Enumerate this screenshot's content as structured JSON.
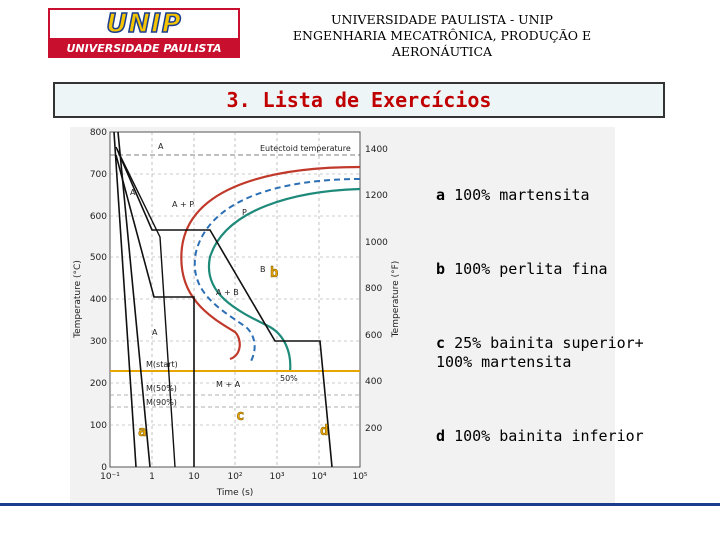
{
  "logo": {
    "top_text": "UNIP",
    "bottom_text": "UNIVERSIDADE PAULISTA"
  },
  "header": {
    "line1": "UNIVERSIDADE PAULISTA - UNIP",
    "line2": "ENGENHARIA MECATRÔNICA, PRODUÇÃO E",
    "line3": "AERONÁUTICA"
  },
  "title": "3. Lista de Exercícios",
  "diagram": {
    "y_left_label": "Temperature (°C)",
    "y_right_label": "Temperature (°F)",
    "x_label": "Time (s)",
    "y_left_ticks": [
      "800",
      "700",
      "600",
      "500",
      "400",
      "300",
      "200",
      "100",
      "0"
    ],
    "y_right_ticks": [
      "1400",
      "1200",
      "1000",
      "800",
      "600",
      "400",
      "200"
    ],
    "x_ticks": [
      "10⁻¹",
      "1",
      "10",
      "10²",
      "10³",
      "10⁴",
      "10⁵"
    ],
    "annotations": {
      "eutectoid": "Eutectoid temperature",
      "A_top": "A",
      "A_left": "A",
      "A_mid": "A",
      "A_plus_P": "A + P",
      "P": "P",
      "B": "B",
      "A_plus_B": "A + B",
      "M_start": "M(start)",
      "M50": "M(50%)",
      "M90": "M(90%)",
      "M_plus_A": "M + A",
      "pct50": "50%"
    },
    "path_labels": {
      "a": "a",
      "b": "b",
      "c": "c",
      "d": "d"
    }
  },
  "items": [
    {
      "letter": "a",
      "text": "100% martensita"
    },
    {
      "letter": "b",
      "text": "100% perlita fina"
    },
    {
      "letter": "c",
      "text": "25% bainita superior+",
      "text2": "100% martensita"
    },
    {
      "letter": "d",
      "text": "100% bainita inferior"
    }
  ],
  "colors": {
    "brand_red": "#c8102e",
    "brand_yellow": "#f5c400",
    "title_red": "#c00000",
    "label_yellow": "#e8a500",
    "curve_red": "#c0392b",
    "curve_teal": "#1e8a7a",
    "curve_blue": "#2c6fb5"
  }
}
